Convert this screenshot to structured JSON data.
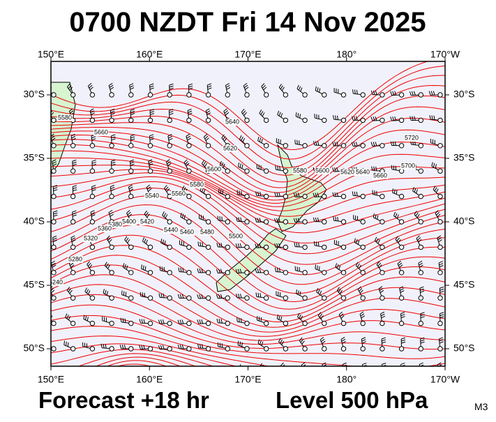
{
  "title": "0700 NZDT Fri 14 Nov 2025",
  "lon_labels": [
    "150°E",
    "160°E",
    "170°E",
    "180°",
    "170°W"
  ],
  "lat_labels": [
    "30°S",
    "35°S",
    "40°S",
    "45°S",
    "50°S"
  ],
  "footer": {
    "forecast": "Forecast +18 hr",
    "level": "Level 500 hPa",
    "code": "M3"
  },
  "contour_labels": [
    "5580",
    "5660",
    "5640",
    "5620",
    "5600",
    "5580",
    "5560",
    "5540",
    "5400",
    "5420",
    "5440",
    "5460",
    "5480",
    "5500",
    "5380",
    "5360",
    "5320",
    "5280",
    "5240",
    "5580",
    "5600",
    "5620",
    "5640",
    "5660",
    "5700",
    "5720"
  ]
}
